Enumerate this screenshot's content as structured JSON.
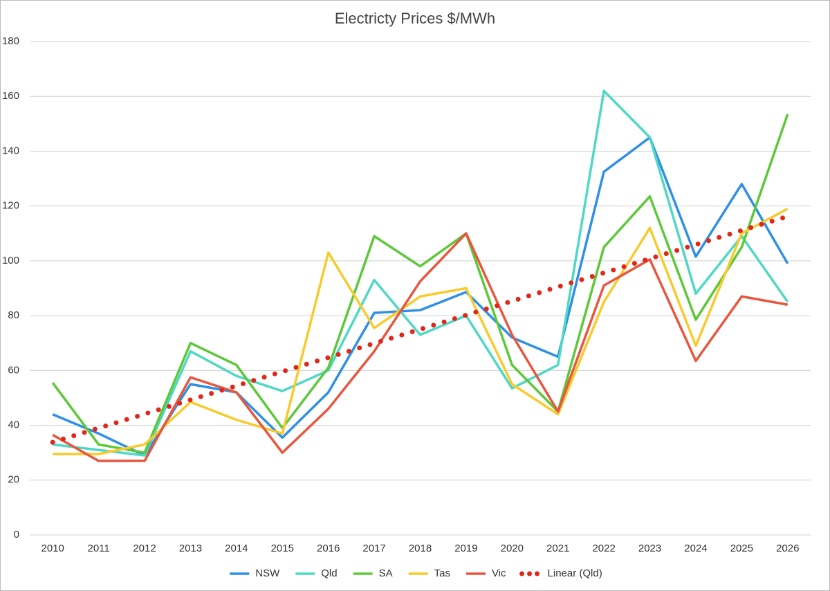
{
  "chart_data": {
    "type": "line",
    "title": "Electricty Prices $/MWh",
    "categories": [
      "2010",
      "2011",
      "2012",
      "2013",
      "2014",
      "2015",
      "2016",
      "2017",
      "2018",
      "2019",
      "2020",
      "2021",
      "2022",
      "2023",
      "2024",
      "2025",
      "2026"
    ],
    "series": [
      {
        "name": "NSW",
        "color": "#2f8fe6",
        "values": [
          44,
          37,
          29,
          55,
          52,
          35.5,
          52,
          81,
          82,
          88.6,
          72,
          65,
          132.5,
          145,
          101.5,
          128,
          99
        ]
      },
      {
        "name": "Qld",
        "color": "#4fd8c4",
        "values": [
          33,
          31,
          29,
          67,
          58,
          52.5,
          60,
          93,
          73,
          80,
          53.5,
          62,
          162,
          145,
          88,
          109,
          85
        ]
      },
      {
        "name": "SA",
        "color": "#5cc83a",
        "values": [
          55.5,
          33,
          30,
          70,
          62,
          39,
          61,
          109,
          98,
          110,
          62,
          45,
          105,
          123.5,
          78.5,
          105,
          153.5
        ]
      },
      {
        "name": "Tas",
        "color": "#f8ca2c",
        "values": [
          29.5,
          29.5,
          33,
          48.5,
          42,
          37,
          103,
          75.5,
          87,
          90,
          55,
          44,
          85,
          112,
          69,
          110,
          119
        ]
      },
      {
        "name": "Vic",
        "color": "#e8563e",
        "values": [
          36.5,
          27,
          27,
          57.5,
          52,
          30,
          46,
          67,
          92.5,
          110,
          73,
          45,
          91,
          100.5,
          63.5,
          87,
          84
        ]
      },
      {
        "name": "Linear (Qld)",
        "color": "#e0281a",
        "dash": "dotted",
        "values": [
          33.8,
          39.0,
          44.1,
          49.3,
          54.4,
          59.6,
          64.7,
          69.9,
          75.0,
          80.2,
          85.3,
          90.5,
          95.6,
          100.8,
          105.9,
          111.1,
          116.2
        ]
      }
    ],
    "ylim": [
      0,
      180
    ],
    "yticks": [
      0,
      20,
      40,
      60,
      80,
      100,
      120,
      140,
      160,
      180
    ],
    "grid": true,
    "legend": "bottom"
  }
}
